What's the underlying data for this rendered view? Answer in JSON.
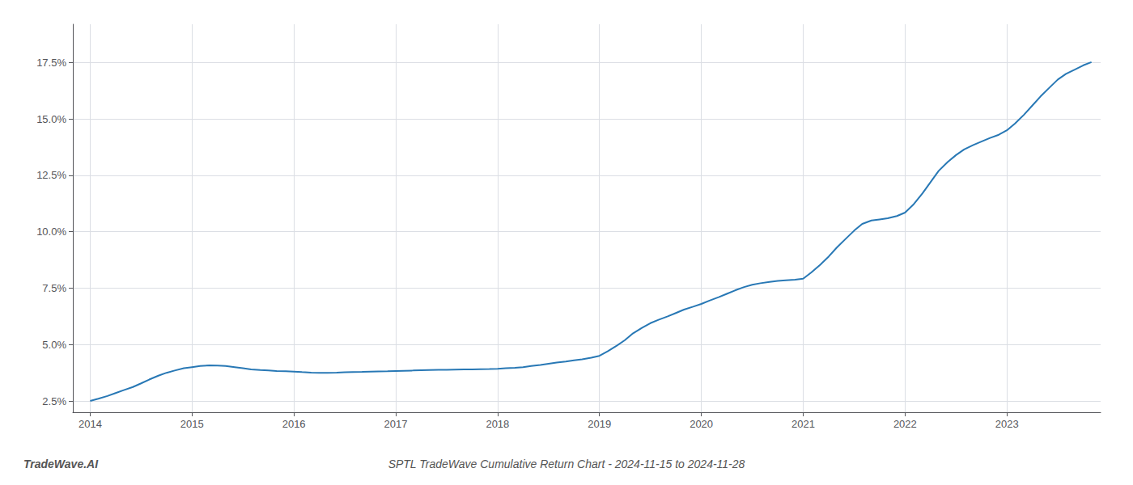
{
  "chart_data": {
    "type": "line",
    "title": "SPTL TradeWave Cumulative Return Chart - 2024-11-15 to 2024-11-28",
    "annotations": [
      "TradeWave.AI"
    ],
    "color": "#2878b5",
    "grid": true,
    "x": [
      2014.0,
      2014.08,
      2014.17,
      2014.25,
      2014.33,
      2014.42,
      2014.5,
      2014.58,
      2014.67,
      2014.75,
      2014.83,
      2014.92,
      2015.0,
      2015.08,
      2015.17,
      2015.25,
      2015.33,
      2015.42,
      2015.5,
      2015.58,
      2015.67,
      2015.75,
      2015.83,
      2015.92,
      2016.0,
      2016.08,
      2016.17,
      2016.25,
      2016.33,
      2016.42,
      2016.5,
      2016.58,
      2016.67,
      2016.75,
      2016.83,
      2016.92,
      2017.0,
      2017.08,
      2017.17,
      2017.25,
      2017.33,
      2017.42,
      2017.5,
      2017.58,
      2017.67,
      2017.75,
      2017.83,
      2017.92,
      2018.0,
      2018.08,
      2018.17,
      2018.25,
      2018.33,
      2018.42,
      2018.5,
      2018.58,
      2018.67,
      2018.75,
      2018.83,
      2018.92,
      2019.0,
      2019.08,
      2019.17,
      2019.25,
      2019.33,
      2019.42,
      2019.5,
      2019.58,
      2019.67,
      2019.75,
      2019.83,
      2019.92,
      2020.0,
      2020.08,
      2020.17,
      2020.25,
      2020.33,
      2020.42,
      2020.5,
      2020.58,
      2020.67,
      2020.75,
      2020.83,
      2020.92,
      2021.0,
      2021.08,
      2021.17,
      2021.25,
      2021.33,
      2021.42,
      2021.5,
      2021.58,
      2021.67,
      2021.75,
      2021.83,
      2021.92,
      2022.0,
      2022.08,
      2022.17,
      2022.25,
      2022.33,
      2022.42,
      2022.5,
      2022.58,
      2022.67,
      2022.75,
      2022.83,
      2022.92,
      2023.0,
      2023.08,
      2023.17,
      2023.25,
      2023.33,
      2023.42,
      2023.5,
      2023.58,
      2023.67,
      2023.75,
      2023.83
    ],
    "values": [
      2.5,
      2.6,
      2.72,
      2.85,
      2.98,
      3.12,
      3.28,
      3.45,
      3.62,
      3.75,
      3.85,
      3.95,
      4.0,
      4.05,
      4.08,
      4.07,
      4.05,
      4.0,
      3.95,
      3.9,
      3.87,
      3.85,
      3.83,
      3.82,
      3.8,
      3.78,
      3.76,
      3.75,
      3.75,
      3.76,
      3.77,
      3.78,
      3.79,
      3.8,
      3.81,
      3.82,
      3.83,
      3.84,
      3.85,
      3.86,
      3.87,
      3.88,
      3.88,
      3.89,
      3.9,
      3.9,
      3.91,
      3.92,
      3.93,
      3.95,
      3.97,
      4.0,
      4.05,
      4.1,
      4.15,
      4.2,
      4.25,
      4.3,
      4.35,
      4.42,
      4.5,
      4.7,
      4.95,
      5.2,
      5.5,
      5.75,
      5.95,
      6.1,
      6.25,
      6.4,
      6.55,
      6.68,
      6.8,
      6.95,
      7.1,
      7.25,
      7.4,
      7.55,
      7.65,
      7.72,
      7.78,
      7.82,
      7.85,
      7.88,
      7.92,
      8.2,
      8.55,
      8.9,
      9.3,
      9.7,
      10.05,
      10.35,
      10.5,
      10.55,
      10.6,
      10.7,
      10.85,
      11.2,
      11.7,
      12.2,
      12.7,
      13.1,
      13.4,
      13.65,
      13.85,
      14.0,
      14.15,
      14.3,
      14.5,
      14.8,
      15.2,
      15.6,
      16.0,
      16.4,
      16.75,
      17.0,
      17.2,
      17.38,
      17.52
    ],
    "xlim": [
      2013.83,
      2023.92
    ],
    "ylim": [
      2.0,
      19.2
    ],
    "xticks": [
      2014,
      2015,
      2016,
      2017,
      2018,
      2019,
      2020,
      2021,
      2022,
      2023
    ],
    "yticks": [
      {
        "value": 2.5,
        "label": "2.5%"
      },
      {
        "value": 5.0,
        "label": "5.0%"
      },
      {
        "value": 7.5,
        "label": "7.5%"
      },
      {
        "value": 10.0,
        "label": "10.0%"
      },
      {
        "value": 12.5,
        "label": "12.5%"
      },
      {
        "value": 15.0,
        "label": "15.0%"
      },
      {
        "value": 17.5,
        "label": "17.5%"
      }
    ]
  }
}
